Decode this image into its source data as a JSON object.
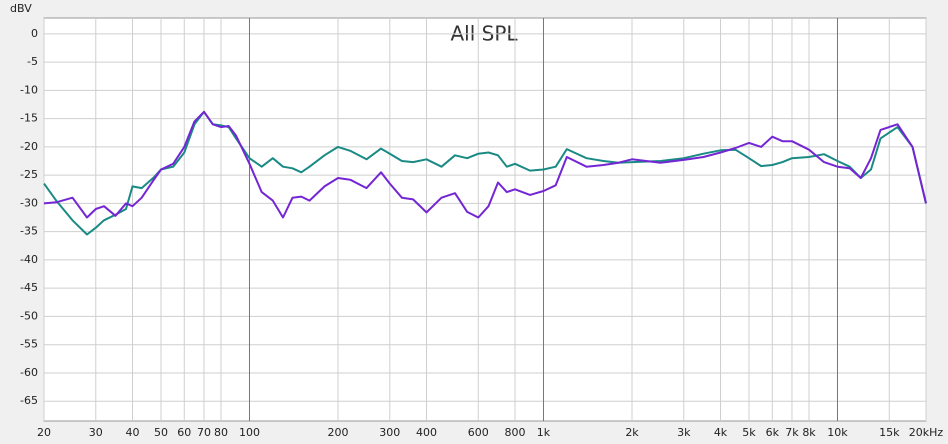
{
  "chart_data": {
    "type": "line",
    "title": "All SPL",
    "y_label": "dBV",
    "log_x": true,
    "grid": true,
    "xlim": [
      20,
      20000
    ],
    "ylim": [
      -68.5,
      2.8
    ],
    "xticks": [
      20,
      30,
      40,
      50,
      60,
      70,
      80,
      100,
      200,
      300,
      400,
      600,
      800,
      {
        "value": 1000,
        "label": "1k"
      },
      {
        "value": 2000,
        "label": "2k"
      },
      {
        "value": 3000,
        "label": "3k"
      },
      {
        "value": 4000,
        "label": "4k"
      },
      {
        "value": 5000,
        "label": "5k"
      },
      {
        "value": 6000,
        "label": "6k"
      },
      {
        "value": 7000,
        "label": "7k"
      },
      {
        "value": 8000,
        "label": "8k"
      },
      {
        "value": 10000,
        "label": "10k"
      },
      {
        "value": 15000,
        "label": "15k"
      },
      {
        "value": 20000,
        "label": "20kHz"
      }
    ],
    "yticks": [
      0,
      -5,
      -10,
      -15,
      -20,
      -25,
      -30,
      -35,
      -40,
      -45,
      -50,
      -55,
      -60,
      -65
    ],
    "x": [
      20,
      22,
      25,
      28,
      30,
      32,
      35,
      38,
      40,
      43,
      47,
      50,
      55,
      60,
      65,
      70,
      75,
      80,
      85,
      90,
      100,
      110,
      120,
      130,
      140,
      150,
      160,
      180,
      200,
      220,
      250,
      280,
      300,
      330,
      360,
      400,
      450,
      500,
      550,
      600,
      650,
      700,
      750,
      800,
      900,
      1000,
      1100,
      1200,
      1400,
      1600,
      1800,
      2000,
      2500,
      3000,
      3500,
      4000,
      4500,
      5000,
      5500,
      6000,
      6500,
      7000,
      8000,
      9000,
      10000,
      11000,
      12000,
      13000,
      14000,
      16000,
      18000,
      20000
    ],
    "series": [
      {
        "color": "#1a8a84",
        "values": [
          -26.5,
          -29.5,
          -33,
          -35.5,
          -34.3,
          -33,
          -32,
          -31,
          -27,
          -27.3,
          -25.5,
          -24,
          -23.5,
          -21,
          -16,
          -13.8,
          -16,
          -16.2,
          -16.5,
          -18.5,
          -22,
          -23.5,
          -22,
          -23.5,
          -23.8,
          -24.5,
          -23.5,
          -21.5,
          -20,
          -20.7,
          -22.2,
          -20.3,
          -21.2,
          -22.5,
          -22.7,
          -22.2,
          -23.5,
          -21.5,
          -22,
          -21.2,
          -21,
          -21.5,
          -23.5,
          -23,
          -24.2,
          -24,
          -23.5,
          -20.4,
          -22,
          -22.5,
          -22.8,
          -22.7,
          -22.5,
          -22,
          -21.2,
          -20.6,
          -20.5,
          -22,
          -23.4,
          -23.2,
          -22.7,
          -22,
          -21.8,
          -21.3,
          -22.5,
          -23.5,
          -25.5,
          -24,
          -18.5,
          -16.5,
          -20,
          -30
        ]
      },
      {
        "color": "#7426d4",
        "values": [
          -30,
          -29.8,
          -29,
          -32.5,
          -31,
          -30.5,
          -32.2,
          -30,
          -30.5,
          -29,
          -26,
          -24,
          -23,
          -20,
          -15.5,
          -13.8,
          -16,
          -16.5,
          -16.3,
          -18,
          -23,
          -28,
          -29.5,
          -32.5,
          -29,
          -28.8,
          -29.5,
          -27,
          -25.5,
          -25.8,
          -27.3,
          -24.5,
          -26.5,
          -29,
          -29.3,
          -31.6,
          -29,
          -28.2,
          -31.5,
          -32.5,
          -30.5,
          -26.3,
          -28,
          -27.5,
          -28.5,
          -27.8,
          -26.8,
          -21.8,
          -23.5,
          -23.2,
          -22.8,
          -22.2,
          -22.8,
          -22.3,
          -21.8,
          -21,
          -20.2,
          -19.3,
          -20,
          -18.2,
          -19,
          -19,
          -20.5,
          -22.7,
          -23.5,
          -23.8,
          -25.5,
          -22,
          -17,
          -16,
          -20,
          -30
        ]
      }
    ]
  }
}
